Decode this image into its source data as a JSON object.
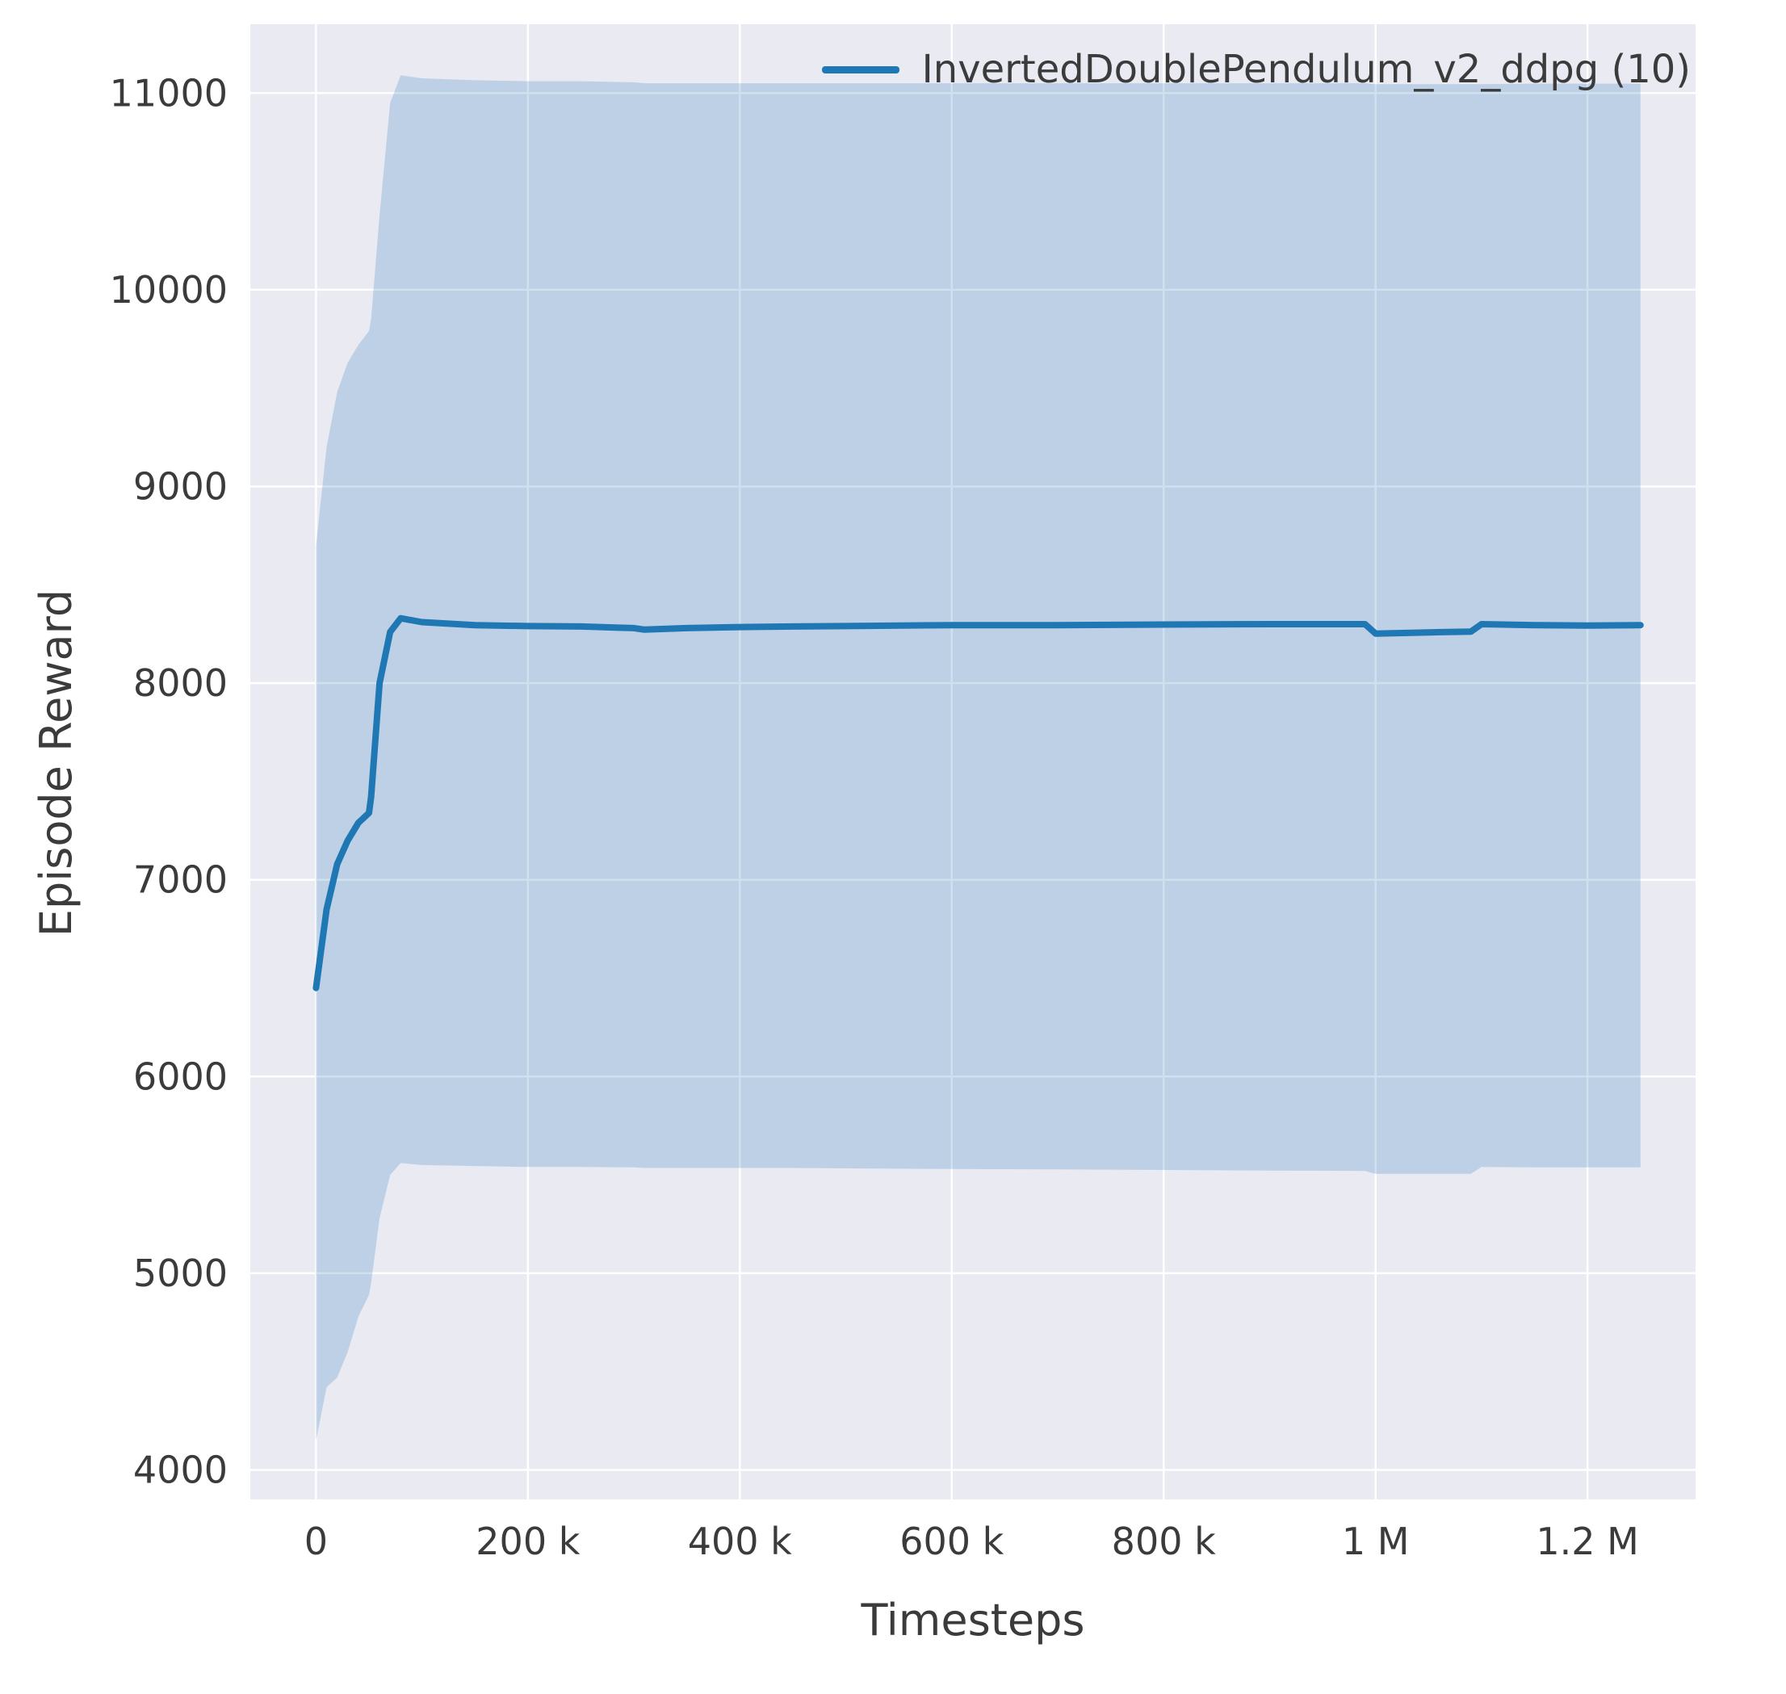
{
  "chart_data": {
    "type": "line",
    "title": "",
    "xlabel": "Timesteps",
    "ylabel": "Episode Reward",
    "grid": true,
    "legend": {
      "position": "upper right",
      "entries": [
        {
          "label": "InvertedDoublePendulum_v2_ddpg (10)",
          "color": "#1f77b4"
        }
      ]
    },
    "xlim": [
      -62000,
      1302000
    ],
    "ylim": [
      3850,
      11350
    ],
    "xticks": [
      {
        "value": 0,
        "label": "0"
      },
      {
        "value": 200000,
        "label": "200 k"
      },
      {
        "value": 400000,
        "label": "400 k"
      },
      {
        "value": 600000,
        "label": "600 k"
      },
      {
        "value": 800000,
        "label": "800 k"
      },
      {
        "value": 1000000,
        "label": "1 M"
      },
      {
        "value": 1200000,
        "label": "1.2 M"
      }
    ],
    "yticks": [
      {
        "value": 4000,
        "label": "4000"
      },
      {
        "value": 5000,
        "label": "5000"
      },
      {
        "value": 6000,
        "label": "6000"
      },
      {
        "value": 7000,
        "label": "7000"
      },
      {
        "value": 8000,
        "label": "8000"
      },
      {
        "value": 9000,
        "label": "9000"
      },
      {
        "value": 10000,
        "label": "10000"
      },
      {
        "value": 11000,
        "label": "11000"
      }
    ],
    "style": {
      "axes_bg": "#eaeaf2",
      "grid_color": "#ffffff",
      "line_color": "#1f77b4",
      "band_alpha": 0.22,
      "text_color": "#3b3b3b"
    },
    "series": [
      {
        "name": "InvertedDoublePendulum_v2_ddpg (10)",
        "x": [
          0,
          10000,
          20000,
          30000,
          40000,
          50000,
          52000,
          60000,
          70000,
          80000,
          100000,
          150000,
          200000,
          250000,
          300000,
          310000,
          350000,
          400000,
          450000,
          500000,
          600000,
          700000,
          800000,
          900000,
          990000,
          1000000,
          1050000,
          1090000,
          1100000,
          1150000,
          1200000,
          1250000
        ],
        "mean": [
          6450,
          6850,
          7080,
          7200,
          7290,
          7340,
          7420,
          8000,
          8260,
          8330,
          8310,
          8295,
          8290,
          8288,
          8280,
          8272,
          8280,
          8285,
          8288,
          8290,
          8295,
          8295,
          8298,
          8300,
          8300,
          8252,
          8258,
          8262,
          8300,
          8295,
          8293,
          8295
        ],
        "band_upper": [
          8700,
          9200,
          9480,
          9630,
          9720,
          9790,
          9850,
          10380,
          10950,
          11090,
          11075,
          11065,
          11060,
          11060,
          11055,
          11050,
          11050,
          11050,
          11050,
          11050,
          11050,
          11050,
          11050,
          11050,
          11050,
          11045,
          11045,
          11045,
          11045,
          11048,
          11048,
          11048
        ],
        "band_lower": [
          4150,
          4420,
          4470,
          4600,
          4780,
          4890,
          4950,
          5280,
          5500,
          5560,
          5550,
          5545,
          5540,
          5540,
          5538,
          5535,
          5535,
          5535,
          5535,
          5533,
          5530,
          5528,
          5525,
          5522,
          5520,
          5505,
          5505,
          5505,
          5540,
          5538,
          5538,
          5538
        ]
      }
    ]
  }
}
